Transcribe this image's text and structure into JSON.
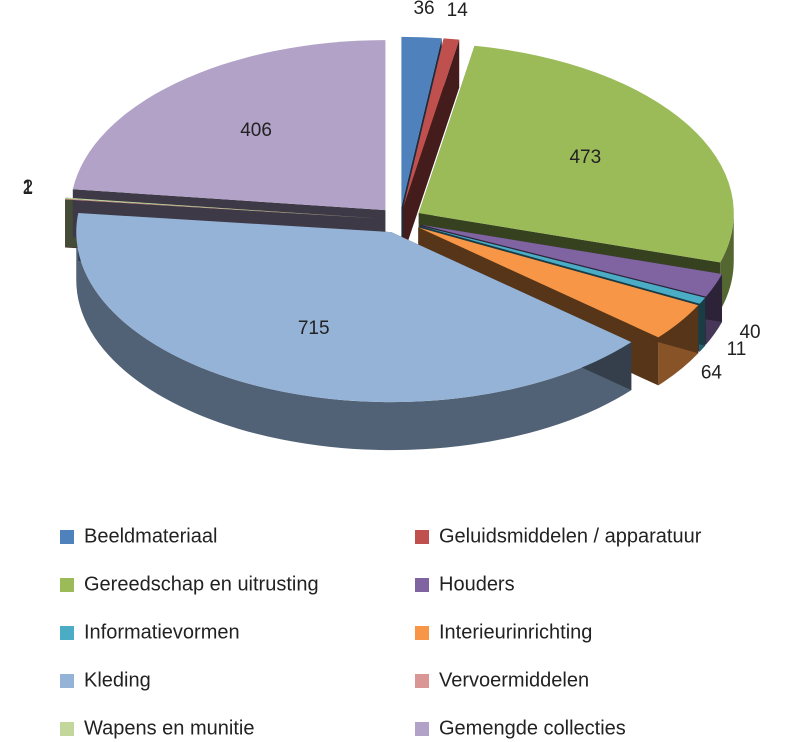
{
  "chart_data": {
    "type": "pie",
    "categories": [
      "Beeldmateriaal",
      "Geluidsmiddelen / apparatuur",
      "Gereedschap en uitrusting",
      "Houders",
      "Informatievormen",
      "Interieurinrichting",
      "Kleding",
      "Vervoermiddelen",
      "Wapens en munitie",
      "Gemengde collecties"
    ],
    "values": [
      36,
      14,
      473,
      40,
      11,
      64,
      715,
      1,
      2,
      406
    ],
    "colors": [
      "#4f81bd",
      "#c0504d",
      "#9bbb59",
      "#8064a2",
      "#4bacc6",
      "#f79646",
      "#95b3d7",
      "#d99694",
      "#c3d69b",
      "#b2a2c7"
    ],
    "legend": "bottom"
  }
}
